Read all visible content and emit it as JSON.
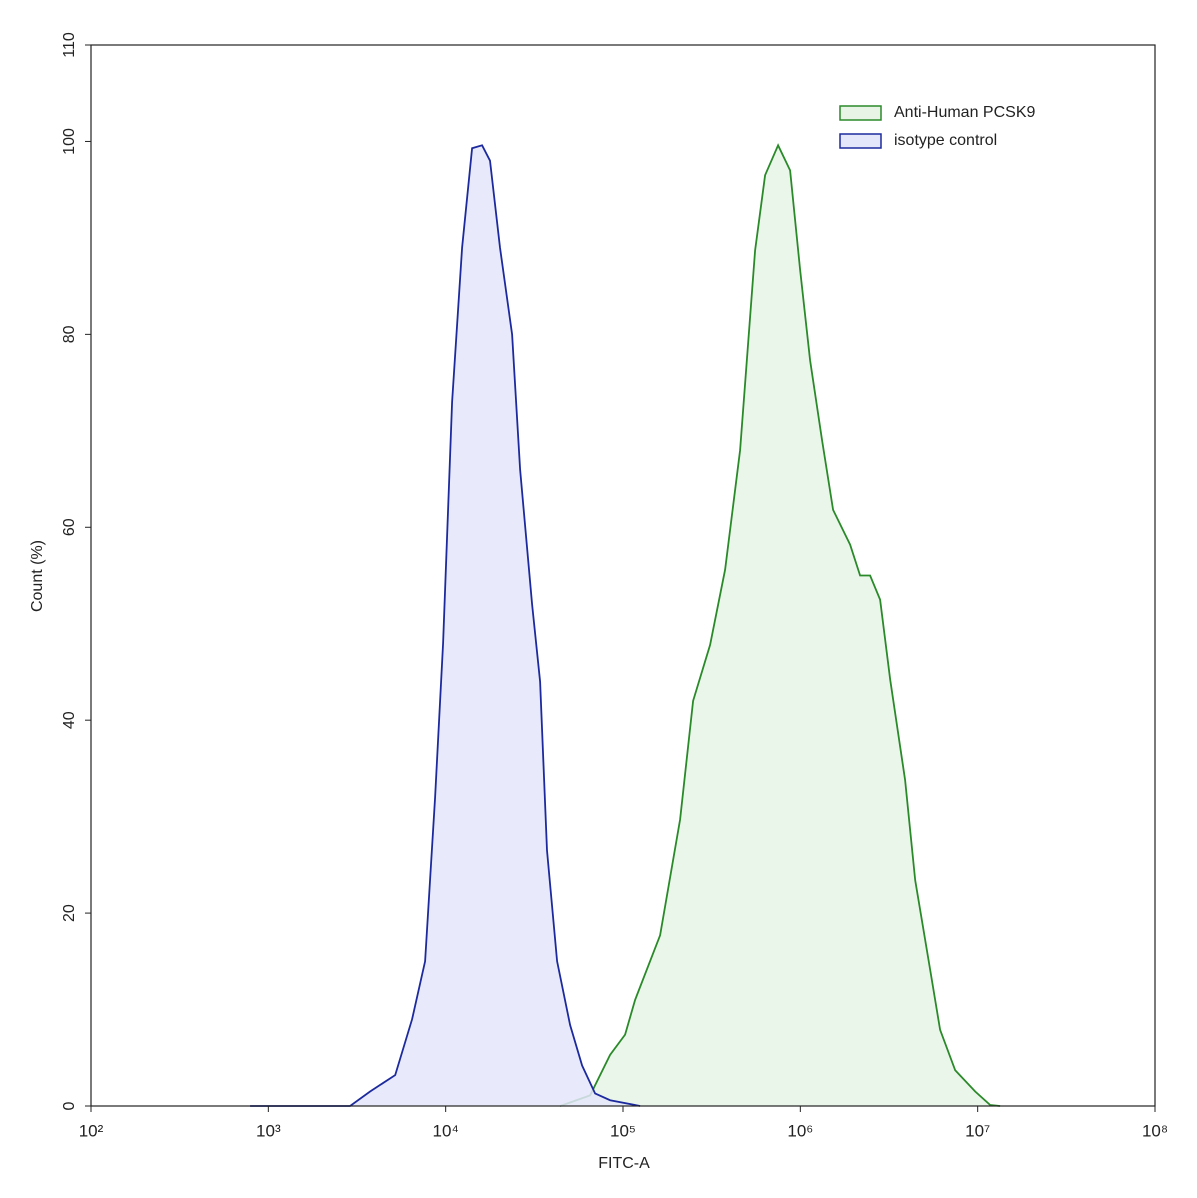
{
  "chart_data": {
    "type": "area",
    "xlabel": "FITC-A",
    "ylabel": "Count  (%)",
    "xscale": "log",
    "xlim": [
      100,
      100000000
    ],
    "ylim": [
      0,
      110
    ],
    "xticks": [
      {
        "value": 100,
        "label": "10²"
      },
      {
        "value": 1000,
        "label": "10³"
      },
      {
        "value": 10000,
        "label": "10⁴"
      },
      {
        "value": 100000,
        "label": "10⁵"
      },
      {
        "value": 1000000,
        "label": "10⁶"
      },
      {
        "value": 10000000,
        "label": "10⁷"
      },
      {
        "value": 100000000,
        "label": "10⁸"
      }
    ],
    "yticks": [
      0,
      20,
      40,
      60,
      80,
      100,
      110
    ],
    "legend": "upper right",
    "series": [
      {
        "name": "Anti-Human PCSK9",
        "color": "#2a8a2a",
        "fill": "#e8f5e6",
        "x": [
          44200,
          65200,
          84600,
          102800,
          117000,
          161900,
          209800,
          248500,
          309800,
          376600,
          457400,
          555900,
          632700,
          749600,
          875100,
          996700,
          1135000,
          1327000,
          1531000,
          1909000,
          2174000,
          2475000,
          2818000,
          3211000,
          3899000,
          4444000,
          5397000,
          6143000,
          7466000,
          9680000,
          11760000,
          13390000
        ],
        "values": [
          0,
          1.1,
          5.3,
          7.4,
          11,
          17.7,
          29.7,
          42,
          47.8,
          55.6,
          68,
          88.7,
          96.5,
          99.6,
          97,
          86.7,
          77.3,
          69,
          61.8,
          58.2,
          55,
          55,
          52.5,
          44.2,
          33.8,
          23.4,
          14.1,
          7.9,
          3.7,
          1.5,
          0.1,
          0
        ]
      },
      {
        "name": "isotype control",
        "color": "#1c2a9e",
        "fill": "#e4e6fa",
        "x": [
          789,
          2891,
          3750,
          5190,
          6470,
          7660,
          8720,
          9670,
          10870,
          12380,
          14100,
          16040,
          17790,
          20260,
          23700,
          26300,
          30700,
          34100,
          37300,
          42500,
          50300,
          58800,
          69600,
          84600,
          124800
        ],
        "values": [
          0,
          0,
          1.5,
          3.2,
          9,
          15,
          32,
          48,
          73,
          89,
          99.3,
          99.6,
          98,
          89,
          80,
          66,
          52,
          44,
          26.5,
          15,
          8.4,
          4.2,
          1.3,
          0.6,
          0
        ]
      }
    ]
  }
}
